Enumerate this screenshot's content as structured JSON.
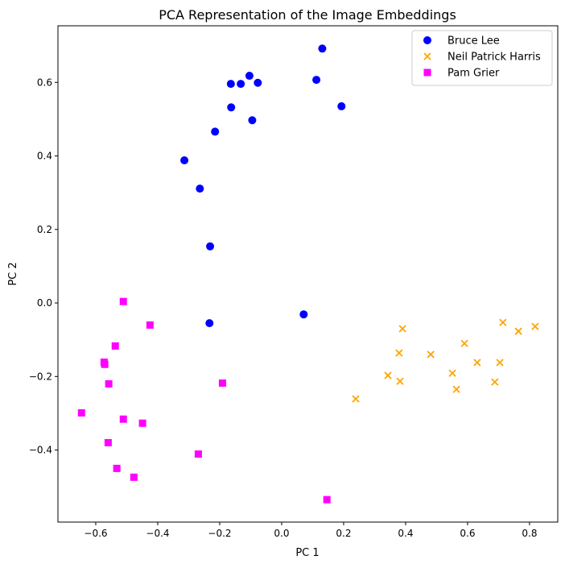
{
  "chart_data": {
    "type": "scatter",
    "title": "PCA Representation of the Image Embeddings",
    "xlabel": "PC 1",
    "ylabel": "PC 2",
    "xlim": [
      -0.722,
      0.891
    ],
    "ylim": [
      -0.596,
      0.754
    ],
    "xticks": [
      -0.6,
      -0.4,
      -0.2,
      0.0,
      0.2,
      0.4,
      0.6,
      0.8
    ],
    "xtick_labels": [
      "−0.6",
      "−0.4",
      "−0.2",
      "0.0",
      "0.2",
      "0.4",
      "0.6",
      "0.8"
    ],
    "yticks": [
      -0.4,
      -0.2,
      0.0,
      0.2,
      0.4,
      0.6
    ],
    "ytick_labels": [
      "−0.4",
      "−0.2",
      "0.0",
      "0.2",
      "0.4",
      "0.6"
    ],
    "grid": false,
    "legend_position": "top-right",
    "series": [
      {
        "name": "Bruce Lee",
        "marker": "circle",
        "color": "#0000ff",
        "x": [
          0.131,
          -0.104,
          -0.164,
          -0.132,
          -0.077,
          0.112,
          0.193,
          -0.163,
          -0.095,
          -0.215,
          -0.314,
          -0.264,
          -0.231,
          0.071,
          -0.233
        ],
        "y": [
          0.692,
          0.618,
          0.596,
          0.596,
          0.599,
          0.607,
          0.535,
          0.532,
          0.497,
          0.466,
          0.388,
          0.311,
          0.154,
          -0.031,
          -0.055
        ]
      },
      {
        "name": "Neil Patrick Harris",
        "marker": "x",
        "color": "#ffa500",
        "x": [
          0.39,
          0.379,
          0.481,
          0.59,
          0.343,
          0.382,
          0.239,
          0.551,
          0.564,
          0.631,
          0.688,
          0.704,
          0.714,
          0.764,
          0.818
        ],
        "y": [
          -0.07,
          -0.136,
          -0.14,
          -0.11,
          -0.197,
          -0.213,
          -0.261,
          -0.191,
          -0.235,
          -0.162,
          -0.215,
          -0.162,
          -0.053,
          -0.077,
          -0.064
        ]
      },
      {
        "name": "Pam Grier",
        "marker": "square",
        "color": "#ff00ff",
        "x": [
          -0.511,
          -0.425,
          -0.537,
          -0.573,
          -0.571,
          -0.558,
          -0.191,
          -0.646,
          -0.511,
          -0.449,
          -0.56,
          -0.269,
          -0.532,
          -0.477,
          0.146
        ],
        "y": [
          0.004,
          -0.06,
          -0.117,
          -0.161,
          -0.167,
          -0.22,
          -0.218,
          -0.299,
          -0.316,
          -0.327,
          -0.38,
          -0.411,
          -0.45,
          -0.474,
          -0.535
        ]
      }
    ]
  }
}
